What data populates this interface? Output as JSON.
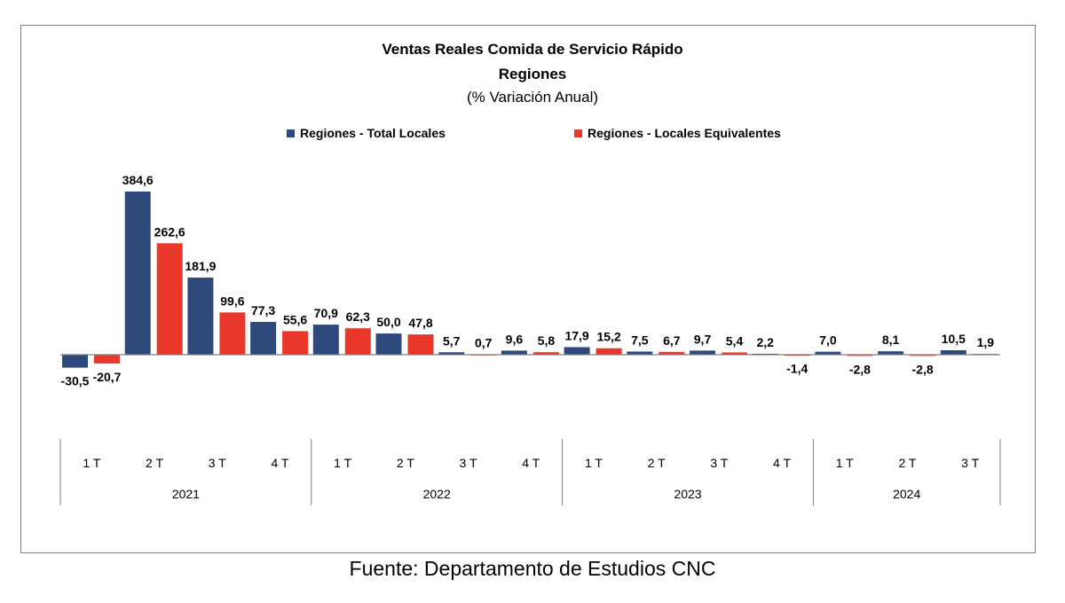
{
  "colors": {
    "total": "#2e4a7d",
    "equiv": "#e8382c",
    "axis": "#7f7f7f",
    "frame": "#7f7f7f"
  },
  "source": "Fuente: Departamento de Estudios CNC",
  "chart_data": {
    "type": "bar",
    "title": "Ventas Reales Comida de Servicio Rápido",
    "subtitle": "Regiones",
    "subtitle2": "(% Variación Anual)",
    "legend_placement": "top-center",
    "grid": false,
    "ylim": [
      -40,
      400
    ],
    "categories": [
      "1 T",
      "2 T",
      "3 T",
      "4 T",
      "1 T",
      "2 T",
      "3 T",
      "4 T",
      "1 T",
      "2 T",
      "3 T",
      "4 T",
      "1 T",
      "2 T",
      "3 T"
    ],
    "year_groups": [
      {
        "label": "2021",
        "count": 4
      },
      {
        "label": "2022",
        "count": 4
      },
      {
        "label": "2023",
        "count": 4
      },
      {
        "label": "2024",
        "count": 3
      }
    ],
    "series": [
      {
        "name": "Regiones - Total Locales",
        "values": [
          -30.5,
          384.6,
          181.9,
          77.3,
          70.9,
          50.0,
          5.7,
          9.6,
          17.9,
          7.5,
          9.7,
          2.2,
          7.0,
          8.1,
          10.5
        ],
        "labels": [
          "-30,5",
          "384,6",
          "181,9",
          "77,3",
          "70,9",
          "50,0",
          "5,7",
          "9,6",
          "17,9",
          "7,5",
          "9,7",
          "2,2",
          "7,0",
          "8,1",
          "10,5"
        ]
      },
      {
        "name": "Regiones - Locales Equivalentes",
        "values": [
          -20.7,
          262.6,
          99.6,
          55.6,
          62.3,
          47.8,
          0.7,
          5.8,
          15.2,
          6.7,
          5.4,
          -1.4,
          -2.8,
          -2.8,
          1.9
        ],
        "labels": [
          "-20,7",
          "262,6",
          "99,6",
          "55,6",
          "62,3",
          "47,8",
          "0,7",
          "5,8",
          "15,2",
          "6,7",
          "5,4",
          "-1,4",
          "-2,8",
          "-2,8",
          "1,9"
        ]
      }
    ]
  }
}
